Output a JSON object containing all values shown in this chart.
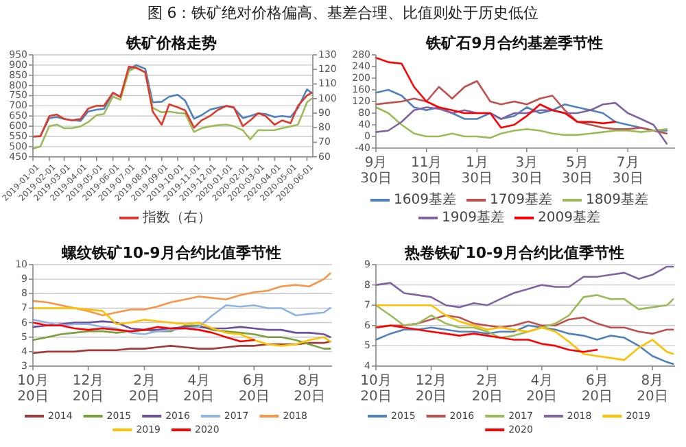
{
  "chart_data": [
    {
      "type": "other",
      "title": "图 6：铁矿绝对价格偏高、基差合理、比值则处于历史低位"
    },
    {
      "type": "line",
      "title": "铁矿价格走势",
      "grid": "y",
      "legend": "bottom",
      "x": [
        "2019-01-01",
        "2019-01-15",
        "2019-02-01",
        "2019-02-15",
        "2019-03-01",
        "2019-03-15",
        "2019-04-01",
        "2019-04-15",
        "2019-05-01",
        "2019-05-15",
        "2019-06-01",
        "2019-06-15",
        "2019-07-01",
        "2019-07-15",
        "2019-08-01",
        "2019-08-15",
        "2019-09-01",
        "2019-09-15",
        "2019-10-01",
        "2019-10-15",
        "2019-11-01",
        "2019-11-15",
        "2019-12-01",
        "2019-12-15",
        "2020-01-01",
        "2020-01-15",
        "2020-02-01",
        "2020-02-15",
        "2020-03-01",
        "2020-03-15",
        "2020-04-01",
        "2020-04-15",
        "2020-05-01",
        "2020-05-15",
        "2020-06-01",
        "2020-06-10"
      ],
      "xlim": [
        "2019-01-01",
        "2020-06-12"
      ],
      "xticks": [
        "2019-01-01",
        "2019-02-01",
        "2019-03-01",
        "2019-04-01",
        "2019-05-01",
        "2019-06-01",
        "2019-07-01",
        "2019-08-01",
        "2019-09-01",
        "2019-10-01",
        "2019-11-01",
        "2019-12-01",
        "2020-01-01",
        "2020-02-01",
        "2020-03-01",
        "2020-04-01",
        "2020-05-01",
        "2020-06-01"
      ],
      "ylim": [
        450,
        950
      ],
      "yticks": [
        450,
        500,
        550,
        600,
        650,
        700,
        750,
        800,
        850,
        900,
        950
      ],
      "y2lim": [
        60,
        130
      ],
      "y2ticks": [
        60,
        70,
        80,
        90,
        100,
        110,
        120,
        130
      ],
      "series": [
        {
          "color": "#4f81bd",
          "values": [
            548,
            552,
            640,
            645,
            636,
            630,
            626,
            672,
            681,
            685,
            763,
            745,
            880,
            900,
            881,
            717,
            720,
            745,
            754,
            726,
            636,
            654,
            681,
            690,
            699,
            690,
            640,
            650,
            663,
            660,
            645,
            650,
            645,
            690,
            781,
            763
          ]
        },
        {
          "color": "#9bbb59",
          "values": [
            490,
            500,
            600,
            608,
            590,
            590,
            599,
            620,
            654,
            660,
            745,
            730,
            870,
            890,
            863,
            690,
            668,
            672,
            665,
            663,
            572,
            590,
            599,
            605,
            608,
            600,
            580,
            535,
            581,
            580,
            581,
            590,
            599,
            608,
            717,
            736
          ]
        },
        {
          "name": "指数（右）",
          "color": "#e0392b",
          "axis": "y2",
          "values": [
            74,
            74,
            88,
            89,
            86,
            85,
            86,
            93,
            95,
            95,
            104,
            101,
            122,
            121,
            118,
            91,
            82,
            96,
            94,
            92,
            80,
            85,
            88,
            92,
            95,
            94,
            81,
            85,
            90,
            88,
            82,
            85,
            83,
            95,
            102,
            104
          ]
        }
      ]
    },
    {
      "type": "line",
      "title": "铁矿石9月合约基差季节性",
      "legend": "bottom",
      "x": [
        "2019-09-30",
        "2019-10-15",
        "2019-10-31",
        "2019-11-15",
        "2019-11-30",
        "2019-12-15",
        "2019-12-31",
        "2020-01-15",
        "2020-01-30",
        "2020-02-15",
        "2020-02-28",
        "2020-03-15",
        "2020-03-30",
        "2020-04-15",
        "2020-04-30",
        "2020-05-15",
        "2020-05-30",
        "2020-06-15",
        "2020-06-30",
        "2020-07-15",
        "2020-07-30",
        "2020-08-15",
        "2020-08-30",
        "2020-09-15"
      ],
      "xlim": [
        "2019-09-30",
        "2020-09-25"
      ],
      "xticks": [
        {
          "value": "2019-09-30",
          "label": "9月30日"
        },
        {
          "value": "2019-11-30",
          "label": "11月30日"
        },
        {
          "value": "2020-01-30",
          "label": "1月30日"
        },
        {
          "value": "2020-03-30",
          "label": "3月30日"
        },
        {
          "value": "2020-05-30",
          "label": "5月30日"
        },
        {
          "value": "2020-07-30",
          "label": "7月30日"
        }
      ],
      "ylim": [
        -40,
        280
      ],
      "yticks": [
        -40,
        0,
        40,
        80,
        120,
        160,
        200,
        240,
        280
      ],
      "series": [
        {
          "name": "1609基差",
          "color": "#4f81bd",
          "values": [
            150,
            160,
            140,
            100,
            90,
            100,
            80,
            60,
            60,
            80,
            60,
            70,
            100,
            80,
            90,
            110,
            100,
            90,
            80,
            50,
            40,
            30,
            20,
            20
          ]
        },
        {
          "name": "1709基差",
          "color": "#c0504d",
          "values": [
            110,
            115,
            120,
            130,
            120,
            170,
            130,
            170,
            190,
            120,
            110,
            120,
            110,
            130,
            140,
            90,
            50,
            40,
            30,
            25,
            25,
            30,
            20,
            10
          ]
        },
        {
          "name": "1809基差",
          "color": "#9bbb59",
          "values": [
            100,
            80,
            40,
            10,
            0,
            0,
            10,
            0,
            0,
            -5,
            10,
            20,
            25,
            20,
            10,
            5,
            5,
            10,
            15,
            20,
            20,
            15,
            20,
            25
          ]
        },
        {
          "name": "1909基差",
          "color": "#8064a2",
          "values": [
            15,
            20,
            50,
            90,
            100,
            95,
            80,
            90,
            80,
            80,
            60,
            80,
            80,
            90,
            90,
            80,
            80,
            90,
            110,
            115,
            80,
            60,
            40,
            -25
          ]
        },
        {
          "name": "2009基差",
          "color": "#ff0000",
          "values": [
            270,
            255,
            250,
            170,
            120,
            100,
            90,
            80,
            80,
            80,
            30,
            40,
            70,
            110,
            90,
            80,
            50,
            50,
            45,
            50,
            null,
            null,
            null,
            null
          ]
        }
      ]
    },
    {
      "type": "line",
      "title": "螺纹铁矿10-9月合约比值季节性",
      "grid": "y",
      "legend": "bottom",
      "x": [
        "2019-10-20",
        "2019-11-05",
        "2019-11-20",
        "2019-12-05",
        "2019-12-20",
        "2020-01-05",
        "2020-01-20",
        "2020-02-05",
        "2020-02-20",
        "2020-03-05",
        "2020-03-20",
        "2020-04-05",
        "2020-04-20",
        "2020-05-05",
        "2020-05-20",
        "2020-06-05",
        "2020-06-20",
        "2020-07-05",
        "2020-07-20",
        "2020-08-05",
        "2020-08-20",
        "2020-09-05",
        "2020-09-12"
      ],
      "xlim": [
        "2019-10-20",
        "2020-09-14"
      ],
      "xticks": [
        {
          "value": "2019-10-20",
          "label": "10月20日"
        },
        {
          "value": "2019-12-20",
          "label": "12月20日"
        },
        {
          "value": "2020-02-20",
          "label": "2月20日"
        },
        {
          "value": "2020-04-20",
          "label": "4月20日"
        },
        {
          "value": "2020-06-20",
          "label": "6月20日"
        },
        {
          "value": "2020-08-20",
          "label": "8月20日"
        }
      ],
      "ylim": [
        3,
        10
      ],
      "yticks": [
        3,
        4,
        5,
        6,
        7,
        8,
        9,
        10
      ],
      "series": [
        {
          "name": "2014",
          "color": "#a0393a",
          "values": [
            3.9,
            4.0,
            4.0,
            4.0,
            4.1,
            4.1,
            4.1,
            4.2,
            4.2,
            4.3,
            4.4,
            4.3,
            4.2,
            4.2,
            4.3,
            4.4,
            4.4,
            4.5,
            4.5,
            4.5,
            4.6,
            4.6,
            4.7
          ]
        },
        {
          "name": "2015",
          "color": "#77a03c",
          "values": [
            4.8,
            5.0,
            5.2,
            5.3,
            5.4,
            5.4,
            5.3,
            5.4,
            5.5,
            5.4,
            5.4,
            5.8,
            5.8,
            5.5,
            5.4,
            5.3,
            5.2,
            5.0,
            5.0,
            4.8,
            4.5,
            4.2,
            4.2
          ]
        },
        {
          "name": "2016",
          "color": "#6a4f9e",
          "values": [
            5.7,
            5.8,
            5.9,
            6.0,
            6.0,
            6.1,
            6.0,
            5.6,
            5.5,
            5.5,
            5.6,
            5.7,
            5.7,
            5.6,
            5.6,
            5.7,
            5.6,
            5.5,
            5.5,
            5.3,
            5.3,
            5.2,
            5.0
          ]
        },
        {
          "name": "2017",
          "color": "#8eb4e3",
          "values": [
            6.2,
            6.0,
            5.8,
            5.9,
            5.9,
            5.7,
            5.6,
            5.3,
            5.2,
            5.4,
            5.5,
            5.6,
            5.7,
            6.5,
            7.2,
            7.1,
            7.2,
            7.0,
            7.0,
            6.5,
            6.6,
            6.7,
            7.0
          ]
        },
        {
          "name": "2018",
          "color": "#f79646",
          "values": [
            7.5,
            7.4,
            7.2,
            7.0,
            6.8,
            6.5,
            6.7,
            6.9,
            6.9,
            7.1,
            7.4,
            7.6,
            7.8,
            7.7,
            7.6,
            7.9,
            8.1,
            8.2,
            8.5,
            8.6,
            8.5,
            9.0,
            9.4
          ]
        },
        {
          "name": "2019",
          "color": "#ffc000",
          "values": [
            7.0,
            7.0,
            7.0,
            7.0,
            6.9,
            6.8,
            5.9,
            6.0,
            6.2,
            6.1,
            6.0,
            5.9,
            6.0,
            5.6,
            5.3,
            5.2,
            4.8,
            4.5,
            4.4,
            4.5,
            4.8,
            5.0,
            4.7
          ]
        },
        {
          "name": "2020",
          "color": "#ff0000",
          "values": [
            6.0,
            5.8,
            5.8,
            5.6,
            5.5,
            5.6,
            5.5,
            5.4,
            5.5,
            5.7,
            5.6,
            5.6,
            5.5,
            5.3,
            5.0,
            4.7,
            4.8,
            null,
            null,
            null,
            null,
            null,
            null
          ]
        }
      ]
    },
    {
      "type": "line",
      "title": "热卷铁矿10-9月合约比值季节性",
      "grid": "y",
      "legend": "bottom",
      "x": [
        "2019-10-20",
        "2019-11-05",
        "2019-11-20",
        "2019-12-05",
        "2019-12-20",
        "2020-01-05",
        "2020-01-20",
        "2020-02-05",
        "2020-02-20",
        "2020-03-05",
        "2020-03-20",
        "2020-04-05",
        "2020-04-20",
        "2020-05-05",
        "2020-05-20",
        "2020-06-05",
        "2020-06-20",
        "2020-07-05",
        "2020-07-20",
        "2020-08-05",
        "2020-08-20",
        "2020-09-05",
        "2020-09-12"
      ],
      "xlim": [
        "2019-10-20",
        "2020-09-14"
      ],
      "xticks": [
        {
          "value": "2019-10-20",
          "label": "10月20日"
        },
        {
          "value": "2019-12-20",
          "label": "12月20日"
        },
        {
          "value": "2020-02-20",
          "label": "2月20日"
        },
        {
          "value": "2020-04-20",
          "label": "4月20日"
        },
        {
          "value": "2020-06-20",
          "label": "6月20日"
        },
        {
          "value": "2020-08-20",
          "label": "8月20日"
        }
      ],
      "ylim": [
        4,
        9
      ],
      "yticks": [
        4,
        5,
        6,
        7,
        8,
        9
      ],
      "series": [
        {
          "name": "2015",
          "color": "#4f81bd",
          "values": [
            5.3,
            5.6,
            5.8,
            5.8,
            5.9,
            5.8,
            5.7,
            5.7,
            5.6,
            5.7,
            5.7,
            6.0,
            5.9,
            5.8,
            5.6,
            5.5,
            5.3,
            5.5,
            5.4,
            5.0,
            4.5,
            4.2,
            4.1
          ]
        },
        {
          "name": "2016",
          "color": "#c0504d",
          "values": [
            5.9,
            6.0,
            6.0,
            6.1,
            6.3,
            6.5,
            6.4,
            6.1,
            6.0,
            5.9,
            6.0,
            6.2,
            6.0,
            6.0,
            6.3,
            6.4,
            6.1,
            5.9,
            5.9,
            5.7,
            5.6,
            5.8,
            5.8
          ]
        },
        {
          "name": "2017",
          "color": "#9bbb59",
          "values": [
            7.0,
            6.5,
            6.0,
            6.1,
            6.5,
            6.1,
            5.9,
            5.9,
            5.7,
            5.4,
            5.5,
            5.7,
            5.9,
            6.1,
            6.5,
            7.4,
            7.5,
            7.3,
            7.3,
            6.8,
            6.9,
            7.0,
            7.3
          ]
        },
        {
          "name": "2018",
          "color": "#8064a2",
          "values": [
            8.0,
            8.1,
            7.6,
            7.5,
            7.4,
            7.0,
            6.9,
            7.1,
            7.0,
            7.3,
            7.6,
            7.8,
            8.0,
            7.9,
            7.9,
            8.4,
            8.4,
            8.5,
            8.6,
            8.3,
            8.5,
            8.9,
            8.9
          ]
        },
        {
          "name": "2019",
          "color": "#ffc000",
          "values": [
            7.0,
            7.0,
            7.0,
            7.0,
            7.0,
            6.5,
            6.2,
            6.0,
            5.8,
            5.9,
            5.8,
            5.7,
            5.9,
            5.7,
            5.2,
            4.6,
            4.5,
            4.4,
            4.3,
            4.9,
            5.3,
            4.7,
            4.6
          ]
        },
        {
          "name": "2020",
          "color": "#ff0000",
          "values": [
            5.9,
            6.0,
            5.9,
            5.8,
            5.7,
            5.6,
            5.5,
            5.6,
            5.5,
            5.4,
            5.3,
            5.3,
            5.1,
            5.0,
            4.8,
            4.7,
            4.8,
            null,
            null,
            null,
            null,
            null,
            null
          ]
        }
      ]
    }
  ]
}
